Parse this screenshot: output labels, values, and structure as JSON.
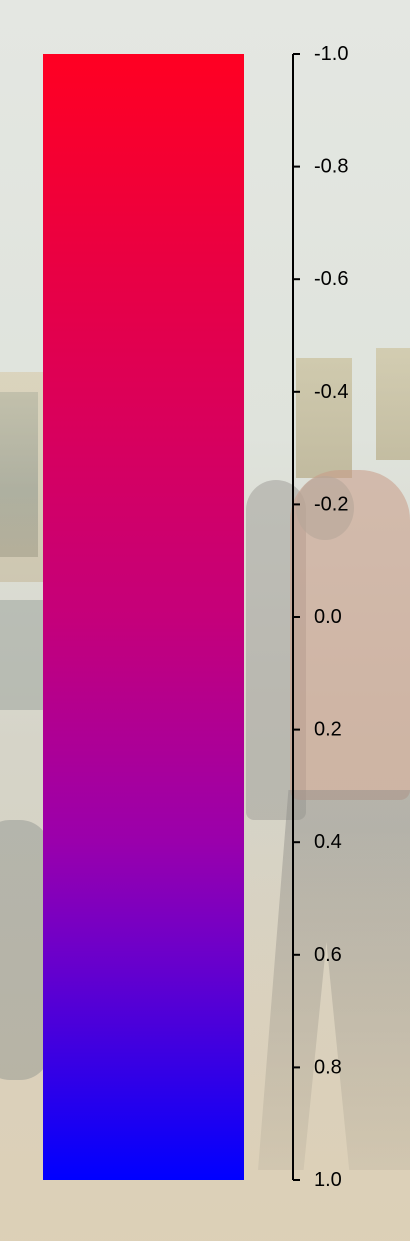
{
  "chart_data": {
    "type": "heatmap",
    "component": "colorbar",
    "orientation": "vertical",
    "axis_side": "right",
    "range": [
      -1.0,
      1.0
    ],
    "ticks": [
      -1.0,
      -0.8,
      -0.6,
      -0.4,
      -0.2,
      0.0,
      0.2,
      0.4,
      0.6,
      0.8,
      1.0
    ],
    "tick_labels": [
      "-1.0",
      "-0.8",
      "-0.6",
      "-0.4",
      "-0.2",
      "0.0",
      "0.2",
      "0.4",
      "0.6",
      "0.8",
      "1.0"
    ],
    "inverted": true,
    "colormap": [
      {
        "value": -1.0,
        "color": "#ff0022"
      },
      {
        "value": 0.0,
        "color": "#c5007a"
      },
      {
        "value": 0.4,
        "color": "#9a00ac"
      },
      {
        "value": 0.6,
        "color": "#6c00ca"
      },
      {
        "value": 1.0,
        "color": "#0000ff"
      }
    ],
    "title": "",
    "xlabel": "",
    "ylabel": ""
  },
  "colors": {
    "axis": "#000000",
    "tick_text": "#000000"
  }
}
